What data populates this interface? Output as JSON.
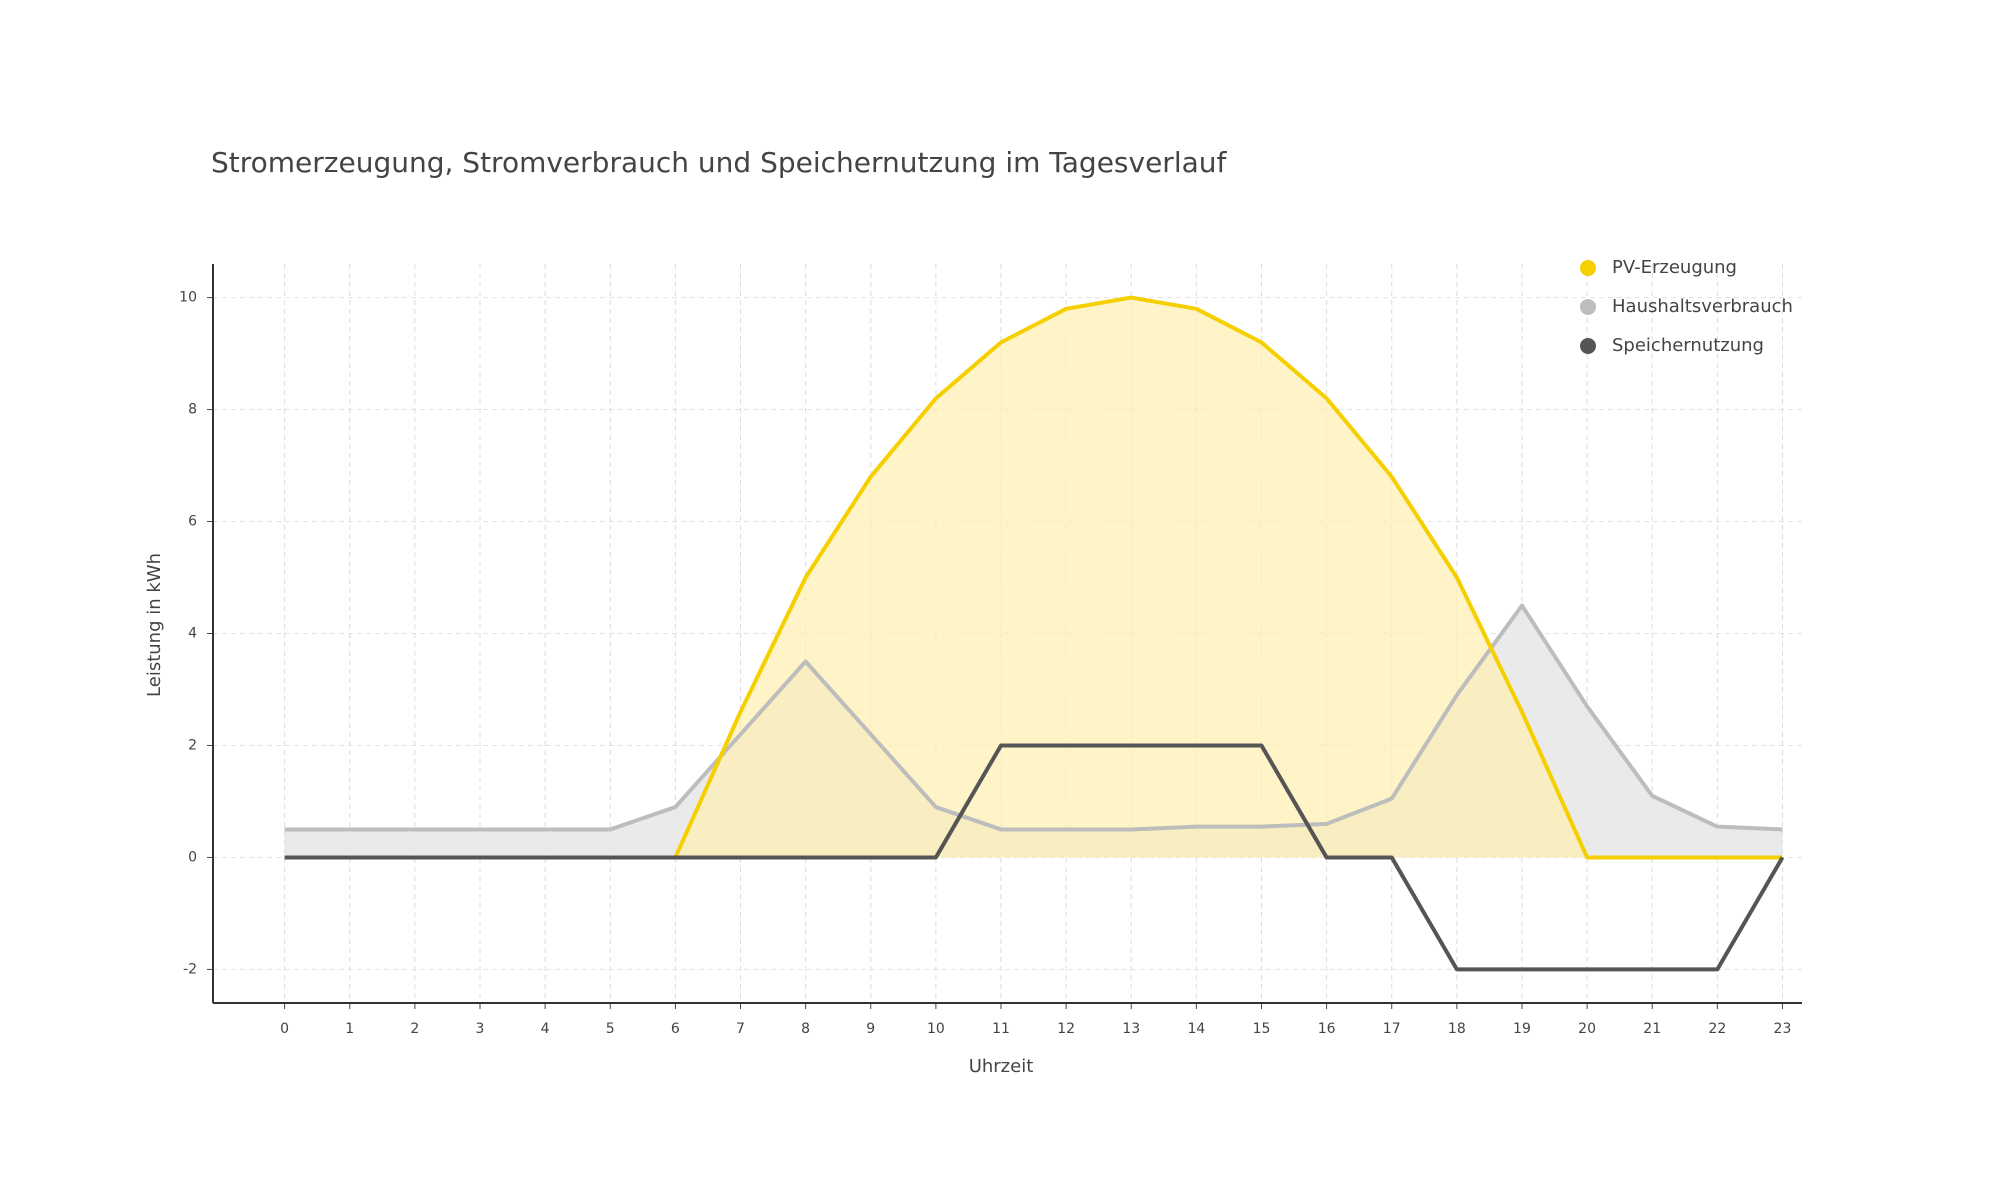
{
  "chart_data": {
    "type": "line",
    "title": "Stromerzeugung, Stromverbrauch und Speichernutzung im Tagesverlauf",
    "x_label": "Uhrzeit",
    "y_label": "Leistung in kWh",
    "x": [
      0,
      1,
      2,
      3,
      4,
      5,
      6,
      7,
      8,
      9,
      10,
      11,
      12,
      13,
      14,
      15,
      16,
      17,
      18,
      19,
      20,
      21,
      22,
      23
    ],
    "series": [
      {
        "name": "PV-Erzeugung",
        "color": "#f5cf00",
        "fill": "#fdf0b0",
        "values": [
          0,
          0,
          0,
          0,
          0,
          0,
          0,
          2.6,
          5.0,
          6.8,
          8.2,
          9.2,
          9.8,
          10,
          9.8,
          9.2,
          8.2,
          6.8,
          5.0,
          2.6,
          0,
          0,
          0,
          0
        ]
      },
      {
        "name": "Haushaltsverbrauch",
        "color": "#bdbdbd",
        "fill": "#e6e6e6",
        "values": [
          0.5,
          0.5,
          0.5,
          0.5,
          0.5,
          0.5,
          0.9,
          2.2,
          3.5,
          2.2,
          0.9,
          0.5,
          0.5,
          0.5,
          0.55,
          0.55,
          0.6,
          1.05,
          2.9,
          4.5,
          2.7,
          1.1,
          0.55,
          0.5
        ]
      },
      {
        "name": "Speichernutzung",
        "color": "#555555",
        "values": [
          0,
          0,
          0,
          0,
          0,
          0,
          0,
          0,
          0,
          0,
          0,
          2,
          2,
          2,
          2,
          2,
          0,
          0,
          -2,
          -2,
          -2,
          -2,
          -2,
          0
        ]
      }
    ],
    "xlim": [
      -1.1,
      23.3
    ],
    "ylim": [
      -2.6,
      10.6
    ],
    "xticks": [
      0,
      1,
      2,
      3,
      4,
      5,
      6,
      7,
      8,
      9,
      10,
      11,
      12,
      13,
      14,
      15,
      16,
      17,
      18,
      19,
      20,
      21,
      22,
      23
    ],
    "yticks": [
      -2,
      0,
      2,
      4,
      6,
      8,
      10
    ],
    "grid": true,
    "legend": "top-right"
  }
}
